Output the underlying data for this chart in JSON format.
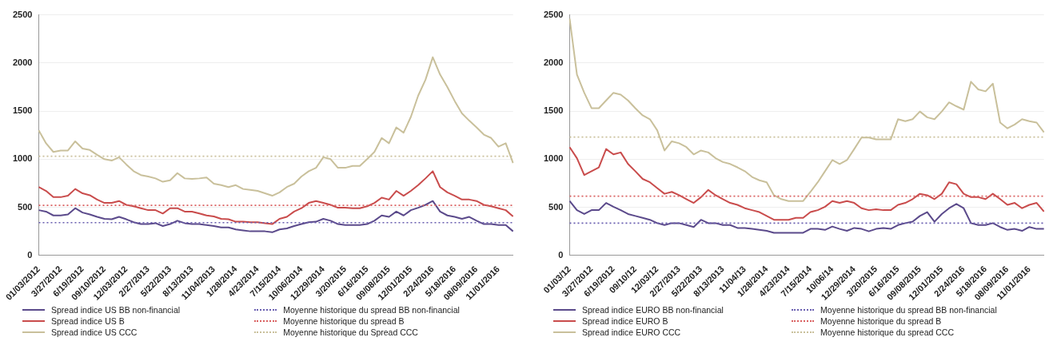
{
  "chart_data": [
    {
      "type": "line",
      "marker": "none",
      "grid": "y",
      "legend": "bottom",
      "ylim": [
        0,
        2500
      ],
      "yticks": [
        0,
        500,
        1000,
        1500,
        2000,
        2500
      ],
      "categories": [
        "01/03/2012",
        null,
        null,
        "3/27/2012",
        null,
        null,
        "6/19/2012",
        null,
        null,
        "09/10/2012",
        null,
        null,
        "12/03/2012",
        null,
        null,
        "2/27/2013",
        null,
        null,
        "5/22/2013",
        null,
        null,
        "8/13/2013",
        null,
        null,
        "11/04/2013",
        null,
        null,
        "1/28/2014",
        null,
        null,
        "4/23/2014",
        null,
        null,
        "7/15/2014",
        null,
        null,
        "10/06/2014",
        null,
        null,
        "12/29/2014",
        null,
        null,
        "3/20/2015",
        null,
        null,
        "6/16/2015",
        null,
        null,
        "09/08/2015",
        null,
        null,
        "12/01/2015",
        null,
        null,
        "2/24/2016",
        null,
        null,
        "5/18/2016",
        null,
        null,
        "08/09/2016",
        null,
        null,
        "11/01/2016",
        null,
        null
      ],
      "series": [
        {
          "name": "Spread indice US BB non-financial",
          "color": "#5b4a8b",
          "values": [
            470,
            455,
            415,
            415,
            425,
            490,
            445,
            425,
            400,
            380,
            375,
            400,
            375,
            345,
            325,
            325,
            335,
            305,
            325,
            360,
            335,
            325,
            325,
            315,
            305,
            290,
            290,
            270,
            260,
            250,
            250,
            250,
            240,
            270,
            280,
            305,
            325,
            345,
            350,
            380,
            360,
            325,
            315,
            315,
            315,
            325,
            360,
            415,
            400,
            455,
            415,
            470,
            495,
            525,
            565,
            455,
            415,
            400,
            380,
            400,
            360,
            325,
            325,
            315,
            315,
            250
          ]
        },
        {
          "name": "Spread indice US B",
          "color": "#c94c4c",
          "values": [
            710,
            670,
            605,
            605,
            620,
            690,
            645,
            625,
            580,
            545,
            545,
            565,
            525,
            510,
            490,
            470,
            470,
            435,
            490,
            490,
            455,
            455,
            435,
            415,
            405,
            380,
            375,
            350,
            350,
            345,
            345,
            335,
            325,
            380,
            400,
            455,
            490,
            545,
            565,
            545,
            525,
            495,
            495,
            490,
            490,
            510,
            545,
            600,
            580,
            670,
            620,
            670,
            730,
            800,
            875,
            710,
            655,
            620,
            580,
            580,
            565,
            525,
            510,
            490,
            470,
            405
          ]
        },
        {
          "name": "Spread indice US CCC",
          "color": "#c9c09b",
          "values": [
            1300,
            1165,
            1075,
            1090,
            1090,
            1185,
            1110,
            1095,
            1045,
            1000,
            985,
            1020,
            945,
            875,
            835,
            820,
            800,
            765,
            780,
            855,
            800,
            795,
            800,
            810,
            745,
            730,
            710,
            730,
            690,
            680,
            670,
            645,
            620,
            655,
            710,
            745,
            820,
            875,
            910,
            1020,
            1000,
            910,
            910,
            930,
            930,
            1000,
            1075,
            1220,
            1165,
            1330,
            1275,
            1440,
            1660,
            1825,
            2060,
            1880,
            1750,
            1605,
            1475,
            1400,
            1330,
            1255,
            1220,
            1130,
            1165,
            960
          ]
        }
      ],
      "ref_lines": [
        {
          "axis": "y",
          "value": 340,
          "label": "Moyenne historique du spread BB non-financial",
          "color": "#6a5fb0",
          "line_style": "dotted"
        },
        {
          "axis": "y",
          "value": 520,
          "label": "Moyenne historique du spread B",
          "color": "#d96060",
          "line_style": "dotted"
        },
        {
          "axis": "y",
          "value": 1030,
          "label": "Moyenne historique du Spread CCC",
          "color": "#c9c09b",
          "line_style": "dotted"
        }
      ]
    },
    {
      "type": "line",
      "marker": "none",
      "grid": "y",
      "legend": "bottom",
      "ylim": [
        0,
        2500
      ],
      "yticks": [
        0,
        500,
        1000,
        1500,
        2000,
        2500
      ],
      "categories": [
        "01/03/12",
        null,
        null,
        "3/27/2012",
        null,
        null,
        "6/19/2012",
        null,
        null,
        "09/10/12",
        null,
        null,
        "12/03/12",
        null,
        null,
        "2/27/2013",
        null,
        null,
        "5/22/2013",
        null,
        null,
        "8/13/2013",
        null,
        null,
        "11/04/13",
        null,
        null,
        "1/28/2014",
        null,
        null,
        "4/23/2014",
        null,
        null,
        "7/15/2014",
        null,
        null,
        "10/06/14",
        null,
        null,
        "12/29/2014",
        null,
        null,
        "3/20/2015",
        null,
        null,
        "6/16/2015",
        null,
        null,
        "09/08/2015",
        null,
        null,
        "12/01/2015",
        null,
        null,
        "2/24/2016",
        null,
        null,
        "5/18/2016",
        null,
        null,
        "08/09/2016",
        null,
        null,
        "11/01/2016",
        null,
        null
      ],
      "series": [
        {
          "name": "Spread indice EURO BB non-financial",
          "color": "#5b4a8b",
          "values": [
            565,
            470,
            430,
            470,
            470,
            545,
            505,
            470,
            430,
            410,
            390,
            370,
            335,
            315,
            335,
            335,
            315,
            295,
            370,
            335,
            335,
            315,
            315,
            285,
            285,
            275,
            265,
            255,
            235,
            235,
            235,
            235,
            235,
            275,
            275,
            265,
            300,
            275,
            255,
            285,
            275,
            250,
            275,
            285,
            275,
            315,
            335,
            350,
            410,
            450,
            350,
            430,
            490,
            535,
            490,
            335,
            315,
            315,
            335,
            295,
            265,
            275,
            255,
            295,
            275,
            275
          ]
        },
        {
          "name": "Spread indice EURO B",
          "color": "#c94c4c",
          "values": [
            1125,
            1010,
            835,
            875,
            915,
            1105,
            1050,
            1070,
            950,
            875,
            795,
            760,
            700,
            640,
            660,
            625,
            585,
            545,
            605,
            680,
            625,
            585,
            545,
            525,
            490,
            470,
            450,
            410,
            370,
            370,
            370,
            390,
            390,
            450,
            470,
            505,
            565,
            545,
            565,
            545,
            490,
            470,
            480,
            470,
            470,
            525,
            545,
            585,
            640,
            625,
            585,
            640,
            760,
            740,
            640,
            605,
            605,
            585,
            640,
            585,
            525,
            545,
            490,
            525,
            545,
            455
          ]
        },
        {
          "name": "Spread indice EURO CCC",
          "color": "#c9c09b",
          "values": [
            2460,
            1880,
            1690,
            1530,
            1530,
            1610,
            1690,
            1670,
            1610,
            1530,
            1455,
            1415,
            1300,
            1090,
            1185,
            1165,
            1125,
            1050,
            1090,
            1070,
            1010,
            970,
            950,
            915,
            875,
            815,
            780,
            760,
            625,
            585,
            565,
            565,
            565,
            660,
            760,
            875,
            990,
            950,
            990,
            1105,
            1225,
            1225,
            1205,
            1205,
            1205,
            1415,
            1395,
            1415,
            1495,
            1435,
            1415,
            1495,
            1590,
            1550,
            1515,
            1805,
            1725,
            1705,
            1785,
            1380,
            1320,
            1360,
            1415,
            1395,
            1380,
            1280
          ]
        }
      ],
      "ref_lines": [
        {
          "axis": "y",
          "value": 335,
          "label": "Moyenne historique du spread BB non-financial",
          "color": "#6a5fb0",
          "line_style": "dotted"
        },
        {
          "axis": "y",
          "value": 615,
          "label": "Moyenne historique du spread B",
          "color": "#d96060",
          "line_style": "dotted"
        },
        {
          "axis": "y",
          "value": 1230,
          "label": "Moyenne historique du spread CCC",
          "color": "#c9c09b",
          "line_style": "dotted"
        }
      ]
    }
  ]
}
